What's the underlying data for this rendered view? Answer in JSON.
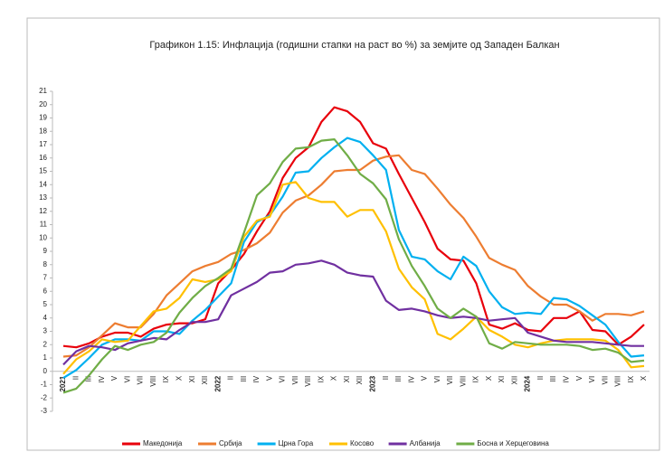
{
  "chart_data": {
    "type": "line",
    "title": "Графикон 1.15: Инфлација (годишни стапки на раст во %) за земјите од Западен Балкан",
    "categories": [
      "2021",
      "II",
      "III",
      "IV",
      "V",
      "VI",
      "VII",
      "VIII",
      "IX",
      "X",
      "XI",
      "XII",
      "2022",
      "II",
      "III",
      "IV",
      "V",
      "VI",
      "VII",
      "VIII",
      "IX",
      "X",
      "XI",
      "XII",
      "2023",
      "II",
      "III",
      "IV",
      "V",
      "VI",
      "VII",
      "VIII",
      "IX",
      "X",
      "XI",
      "XII",
      "2024",
      "II",
      "III",
      "IV",
      "V",
      "VI",
      "VII",
      "VIII",
      "IX",
      "X"
    ],
    "ylim": [
      -3,
      21
    ],
    "yticks": [
      -3,
      -2,
      -1,
      0,
      1,
      2,
      3,
      4,
      5,
      6,
      7,
      8,
      9,
      10,
      11,
      12,
      13,
      14,
      15,
      16,
      17,
      18,
      19,
      20,
      21
    ],
    "grid": false,
    "legend": "bottom",
    "series": [
      {
        "name": "Македонија",
        "color": "#e8000b",
        "values": [
          1.9,
          1.8,
          2.1,
          2.6,
          2.9,
          2.9,
          2.6,
          3.2,
          3.5,
          3.6,
          3.6,
          3.9,
          6.6,
          7.6,
          8.8,
          10.5,
          12.0,
          14.5,
          16.0,
          16.8,
          18.7,
          19.8,
          19.5,
          18.7,
          17.1,
          16.7,
          14.8,
          13.0,
          11.2,
          9.2,
          8.4,
          8.3,
          6.6,
          3.5,
          3.2,
          3.6,
          3.1,
          3.0,
          4.0,
          4.0,
          4.5,
          3.1,
          3.0,
          2.0,
          2.6,
          3.5
        ]
      },
      {
        "name": "Србија",
        "color": "#ed7d31",
        "values": [
          1.1,
          1.2,
          1.8,
          2.7,
          3.6,
          3.3,
          3.3,
          4.3,
          5.7,
          6.6,
          7.5,
          7.9,
          8.2,
          8.8,
          9.1,
          9.6,
          10.4,
          11.9,
          12.8,
          13.2,
          14.0,
          15.0,
          15.1,
          15.1,
          15.8,
          16.1,
          16.2,
          15.1,
          14.8,
          13.7,
          12.5,
          11.5,
          10.1,
          8.5,
          8.0,
          7.6,
          6.4,
          5.6,
          5.0,
          5.0,
          4.5,
          3.8,
          4.3,
          4.3,
          4.2,
          4.5
        ]
      },
      {
        "name": "Црна Гора",
        "color": "#00b0f0",
        "values": [
          -0.5,
          0.1,
          1.0,
          2.0,
          2.4,
          2.4,
          2.3,
          3.0,
          3.0,
          2.8,
          3.8,
          4.6,
          5.6,
          6.6,
          9.7,
          11.2,
          11.7,
          13.1,
          14.9,
          15.0,
          16.0,
          16.8,
          17.5,
          17.2,
          16.2,
          15.1,
          10.6,
          8.6,
          8.4,
          7.5,
          6.9,
          8.6,
          7.9,
          6.0,
          4.8,
          4.3,
          4.4,
          4.3,
          5.5,
          5.4,
          4.9,
          4.2,
          3.5,
          2.2,
          1.1,
          1.2
        ]
      },
      {
        "name": "Косово",
        "color": "#ffc000",
        "values": [
          -0.2,
          0.9,
          1.5,
          2.4,
          2.2,
          2.3,
          3.4,
          4.5,
          4.7,
          5.5,
          6.9,
          6.7,
          6.9,
          7.5,
          10.1,
          11.3,
          11.6,
          14.0,
          14.2,
          13.0,
          12.7,
          12.7,
          11.6,
          12.1,
          12.1,
          10.5,
          7.7,
          6.3,
          5.4,
          2.8,
          2.4,
          3.2,
          4.1,
          3.1,
          2.6,
          2.0,
          1.8,
          2.1,
          2.3,
          2.4,
          2.4,
          2.4,
          2.3,
          1.6,
          0.3,
          0.4
        ]
      },
      {
        "name": "Албанија",
        "color": "#7030a0",
        "values": [
          0.5,
          1.5,
          1.9,
          1.8,
          1.6,
          2.1,
          2.3,
          2.5,
          2.4,
          3.1,
          3.7,
          3.7,
          3.9,
          5.7,
          6.2,
          6.7,
          7.4,
          7.5,
          8.0,
          8.1,
          8.3,
          8.0,
          7.4,
          7.2,
          7.1,
          5.3,
          4.6,
          4.7,
          4.5,
          4.2,
          4.0,
          4.1,
          4.0,
          3.8,
          3.9,
          4.0,
          2.9,
          2.6,
          2.3,
          2.2,
          2.2,
          2.2,
          2.1,
          2.0,
          1.9,
          1.9
        ]
      },
      {
        "name": "Босна и Херцеговина",
        "color": "#70ad47",
        "values": [
          -1.6,
          -1.3,
          -0.3,
          0.9,
          1.9,
          1.6,
          2.0,
          2.2,
          2.9,
          4.4,
          5.5,
          6.4,
          7.0,
          7.7,
          10.4,
          13.2,
          14.1,
          15.7,
          16.7,
          16.8,
          17.3,
          17.4,
          16.2,
          14.8,
          14.1,
          12.9,
          9.9,
          7.9,
          6.4,
          4.7,
          4.0,
          4.7,
          4.1,
          2.1,
          1.7,
          2.2,
          2.1,
          2.0,
          2.0,
          2.0,
          1.9,
          1.6,
          1.7,
          1.4,
          0.7,
          0.8
        ]
      }
    ]
  }
}
